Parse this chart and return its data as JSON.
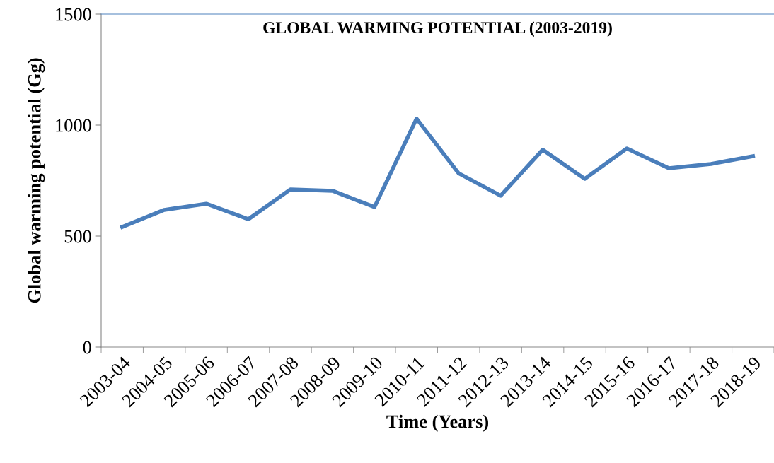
{
  "chart_data": {
    "type": "line",
    "title": "GLOBAL WARMING POTENTIAL (2003-2019)",
    "xlabel": "Time (Years)",
    "ylabel": "Global warming potential (Gg)",
    "categories": [
      "2003-04",
      "2004-05",
      "2005-06",
      "2006-07",
      "2007-08",
      "2008-09",
      "2009-10",
      "2010-11",
      "2011-12",
      "2012-13",
      "2013-14",
      "2014-15",
      "2015-16",
      "2016-17",
      "2017-18",
      "2018-19"
    ],
    "series": [
      {
        "color": "#4a7ebb",
        "values": [
          541,
          618,
          646,
          576,
          710,
          704,
          631,
          1029,
          783,
          682,
          889,
          758,
          895,
          806,
          825,
          860
        ]
      }
    ],
    "ylim": [
      0,
      1500
    ],
    "yticks": [
      0,
      500,
      1000,
      1500
    ],
    "grid": false,
    "legend": false,
    "marker": "none",
    "line_style": "solid"
  }
}
